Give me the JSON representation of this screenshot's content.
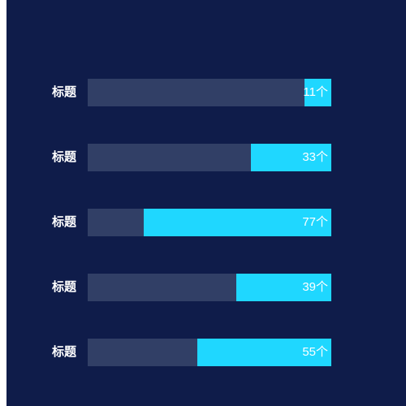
{
  "chart_data": {
    "type": "bar",
    "orientation": "horizontal",
    "categories": [
      "标题",
      "标题",
      "标题",
      "标题",
      "标题"
    ],
    "values": [
      11,
      33,
      77,
      39,
      55
    ],
    "value_labels": [
      "11个",
      "33个",
      "77个",
      "39个",
      "55个"
    ],
    "xlim": [
      0,
      100
    ],
    "fill_direction": "right-to-left",
    "grid": false,
    "colors": {
      "background": "#0f1c4a",
      "track": "#313f66",
      "fill": "#1fd7ff",
      "text": "#ffffff"
    }
  }
}
